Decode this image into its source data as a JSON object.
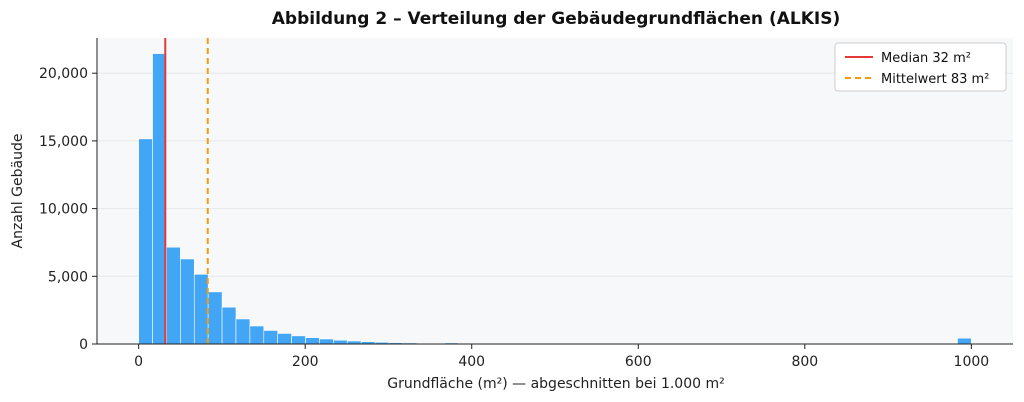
{
  "chart_data": {
    "type": "bar",
    "title": "Abbildung 2 – Verteilung der Gebäudegrundflächen (ALKIS)",
    "xlabel": "Grundfläche (m²)  — abgeschnitten bei 1.000 m²",
    "ylabel": "Anzahl Gebäude",
    "xlim": [
      -50,
      1050
    ],
    "ylim": [
      0,
      22600
    ],
    "xticks": [
      0,
      200,
      400,
      600,
      800,
      1000
    ],
    "xtick_labels": [
      "0",
      "200",
      "400",
      "600",
      "800",
      "1000"
    ],
    "yticks": [
      0,
      5000,
      10000,
      15000,
      20000
    ],
    "ytick_labels": [
      "0",
      "5,000",
      "10,000",
      "15,000",
      "20,000"
    ],
    "grid": "horizontal",
    "legend_position": "top-right",
    "bin_width": 16.7,
    "bins": [
      {
        "x0": 0,
        "count": 15150
      },
      {
        "x0": 16.7,
        "count": 21450
      },
      {
        "x0": 33.4,
        "count": 7150
      },
      {
        "x0": 50.1,
        "count": 6280
      },
      {
        "x0": 66.8,
        "count": 5150
      },
      {
        "x0": 83.5,
        "count": 3850
      },
      {
        "x0": 100.2,
        "count": 2720
      },
      {
        "x0": 116.9,
        "count": 1850
      },
      {
        "x0": 133.6,
        "count": 1330
      },
      {
        "x0": 150.3,
        "count": 1000
      },
      {
        "x0": 167,
        "count": 780
      },
      {
        "x0": 183.7,
        "count": 600
      },
      {
        "x0": 200.4,
        "count": 470
      },
      {
        "x0": 217.1,
        "count": 370
      },
      {
        "x0": 233.8,
        "count": 280
      },
      {
        "x0": 250.5,
        "count": 220
      },
      {
        "x0": 267.2,
        "count": 170
      },
      {
        "x0": 283.9,
        "count": 130
      },
      {
        "x0": 300.6,
        "count": 100
      },
      {
        "x0": 317.3,
        "count": 80
      },
      {
        "x0": 334,
        "count": 60
      },
      {
        "x0": 350.7,
        "count": 50
      },
      {
        "x0": 367.4,
        "count": 80
      },
      {
        "x0": 384.1,
        "count": 30
      },
      {
        "x0": 400.8,
        "count": 25
      },
      {
        "x0": 417.5,
        "count": 20
      },
      {
        "x0": 434.2,
        "count": 15
      },
      {
        "x0": 450.9,
        "count": 12
      },
      {
        "x0": 467.6,
        "count": 10
      },
      {
        "x0": 484.3,
        "count": 8
      },
      {
        "x0": 983.3,
        "count": 430
      }
    ],
    "reference_lines": [
      {
        "name": "Median 32 m²",
        "value": 32,
        "color": "#e53935",
        "style": "solid"
      },
      {
        "name": "Mittelwert 83 m²",
        "value": 83,
        "color": "#f39c12",
        "style": "dashed"
      }
    ],
    "colors": {
      "bar": "#42a5f5",
      "bar_edge": "#ffffff",
      "plot_background": "#f7f8fa",
      "grid": "#e6e8ec"
    }
  }
}
